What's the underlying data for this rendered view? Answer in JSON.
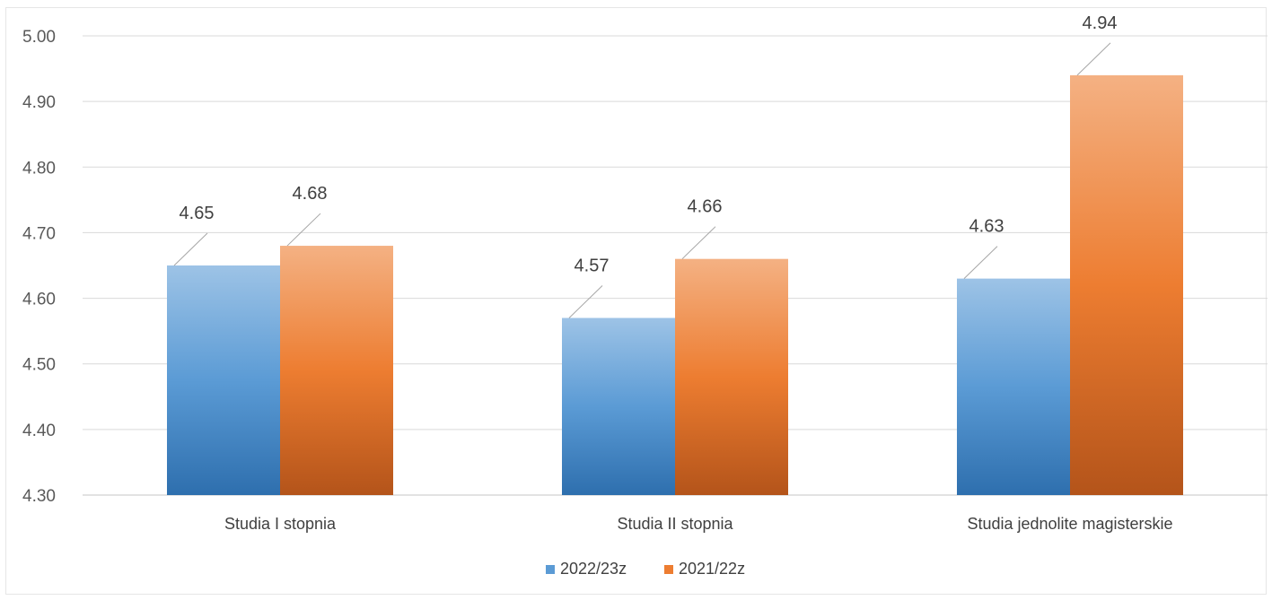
{
  "chart_data": {
    "type": "bar",
    "categories": [
      "Studia I stopnia",
      "Studia II stopnia",
      "Studia jednolite magisterskie"
    ],
    "series": [
      {
        "name": "2022/23z",
        "values": [
          4.65,
          4.57,
          4.63
        ],
        "color": "#5b9bd5"
      },
      {
        "name": "2021/22z",
        "values": [
          4.68,
          4.66,
          4.94
        ],
        "color": "#ed7d31"
      }
    ],
    "data_labels": [
      [
        "4.65",
        "4.57",
        "4.63"
      ],
      [
        "4.68",
        "4.66",
        "4.94"
      ]
    ],
    "y_ticks": [
      "4.30",
      "4.40",
      "4.50",
      "4.60",
      "4.70",
      "4.80",
      "4.90",
      "5.00"
    ],
    "ylim": [
      4.3,
      5.0
    ],
    "grid": true,
    "legend_position": "bottom-center"
  }
}
